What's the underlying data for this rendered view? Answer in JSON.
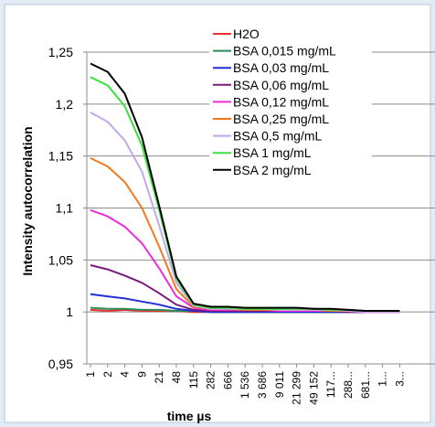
{
  "chart_data": {
    "type": "line",
    "xlabel": "time µs",
    "ylabel": "Intensity autocorrelation",
    "ylim": [
      0.95,
      1.25
    ],
    "yticks": [
      "0,95",
      "1",
      "1,05",
      "1,1",
      "1,15",
      "1,2",
      "1,25"
    ],
    "ytick_values": [
      0.95,
      1.0,
      1.05,
      1.1,
      1.15,
      1.2,
      1.25
    ],
    "grid": "horizontal",
    "legend_position": "top-right",
    "x_tick_labels": [
      "1",
      "2",
      "4",
      "9",
      "21",
      "48",
      "115",
      "282",
      "666",
      "1 536",
      "3 686",
      "9 011",
      "21 299",
      "49 152",
      "117...",
      "288...",
      "681...",
      "1...",
      "3..."
    ],
    "series": [
      {
        "name": "H2O",
        "color": "#e8312a",
        "values": [
          1.002,
          1.001,
          1.002,
          1.001,
          1.001,
          1.001,
          1.0,
          1.0,
          1.0,
          1.0,
          1.0,
          1.0,
          1.0,
          1.0,
          1.0,
          1.0,
          1.0,
          1.0,
          1.0
        ]
      },
      {
        "name": "BSA 0,015 mg/mL",
        "color": "#2e8b57",
        "values": [
          1.004,
          1.003,
          1.003,
          1.002,
          1.002,
          1.001,
          1.001,
          1.0,
          1.0,
          1.0,
          1.0,
          1.0,
          1.0,
          1.0,
          1.0,
          1.0,
          1.0,
          1.0,
          1.0
        ]
      },
      {
        "name": "BSA 0,03 mg/mL",
        "color": "#1f2fd6",
        "values": [
          1.017,
          1.015,
          1.013,
          1.01,
          1.007,
          1.003,
          1.001,
          1.0,
          1.0,
          1.0,
          1.0,
          1.0,
          1.0,
          1.0,
          1.0,
          1.0,
          1.0,
          1.0,
          1.0
        ]
      },
      {
        "name": "BSA 0,06 mg/mL",
        "color": "#7a1a7e",
        "values": [
          1.045,
          1.041,
          1.035,
          1.028,
          1.018,
          1.007,
          1.002,
          1.001,
          1.001,
          1.001,
          1.001,
          1.001,
          1.001,
          1.001,
          1.001,
          1.0,
          1.0,
          1.0,
          1.0
        ]
      },
      {
        "name": "BSA 0,12 mg/mL",
        "color": "#ee2bd8",
        "values": [
          1.098,
          1.092,
          1.082,
          1.066,
          1.042,
          1.015,
          1.004,
          1.002,
          1.002,
          1.002,
          1.002,
          1.001,
          1.001,
          1.001,
          1.001,
          1.001,
          1.0,
          1.0,
          1.0
        ]
      },
      {
        "name": "BSA 0,25 mg/mL",
        "color": "#f07a1c",
        "values": [
          1.148,
          1.14,
          1.125,
          1.1,
          1.063,
          1.022,
          1.005,
          1.003,
          1.003,
          1.002,
          1.002,
          1.002,
          1.002,
          1.002,
          1.001,
          1.001,
          1.0,
          1.0,
          1.0
        ]
      },
      {
        "name": "BSA 0,5 mg/mL",
        "color": "#c2a8e8",
        "values": [
          1.192,
          1.183,
          1.165,
          1.135,
          1.083,
          1.028,
          1.006,
          1.003,
          1.003,
          1.003,
          1.003,
          1.002,
          1.002,
          1.002,
          1.002,
          1.001,
          1.0,
          1.0,
          1.0
        ]
      },
      {
        "name": "BSA 1 mg/mL",
        "color": "#38e23a",
        "values": [
          1.226,
          1.218,
          1.198,
          1.16,
          1.098,
          1.032,
          1.007,
          1.004,
          1.004,
          1.003,
          1.003,
          1.003,
          1.003,
          1.003,
          1.002,
          1.002,
          1.001,
          1.001,
          1.001
        ]
      },
      {
        "name": "BSA 2 mg/mL",
        "color": "#000000",
        "values": [
          1.239,
          1.231,
          1.21,
          1.168,
          1.102,
          1.034,
          1.008,
          1.005,
          1.005,
          1.004,
          1.004,
          1.004,
          1.004,
          1.003,
          1.003,
          1.002,
          1.001,
          1.001,
          1.001
        ]
      }
    ]
  }
}
